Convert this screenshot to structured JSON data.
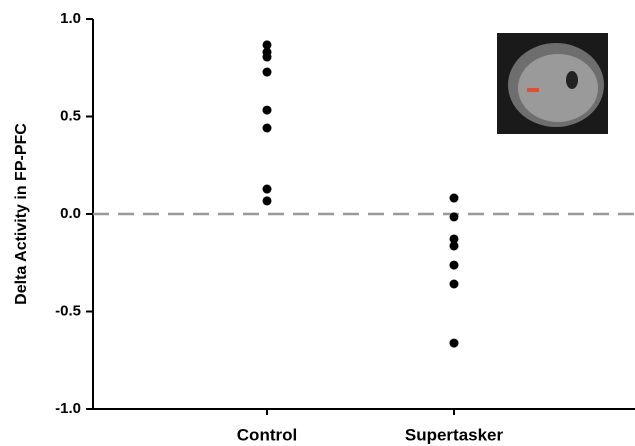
{
  "chart_data": {
    "type": "strip",
    "y_label": "Delta Activity in FP-PFC",
    "categories": [
      "Control",
      "Supertasker"
    ],
    "values": [
      [
        0.867,
        0.83,
        0.805,
        0.728,
        0.533,
        0.441,
        0.128,
        0.067
      ],
      [
        0.082,
        -0.015,
        -0.128,
        -0.164,
        -0.262,
        -0.359,
        -0.662
      ]
    ],
    "color": "#000000",
    "ylim": [
      -1.0,
      1.0
    ],
    "yticks": [
      {
        "value": -1.0,
        "label": "-1.0"
      },
      -0.5,
      {
        "value": 0,
        "label": "0.0"
      },
      0.5,
      {
        "value": 1.0,
        "label": "1.0"
      }
    ],
    "reference_line": {
      "value": 0,
      "color": "#999999"
    }
  }
}
